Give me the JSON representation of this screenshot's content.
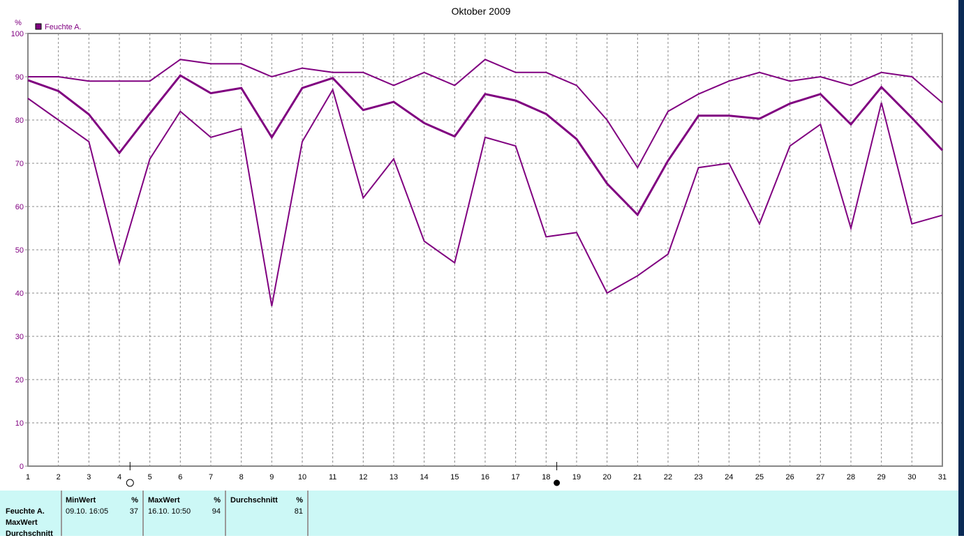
{
  "chart_data": {
    "type": "line",
    "title": "Oktober 2009",
    "ylabel": "%",
    "ylim": [
      0,
      100
    ],
    "yticks": [
      0,
      10,
      20,
      30,
      40,
      50,
      60,
      70,
      80,
      90,
      100
    ],
    "x": [
      1,
      2,
      3,
      4,
      5,
      6,
      7,
      8,
      9,
      10,
      11,
      12,
      13,
      14,
      15,
      16,
      17,
      18,
      19,
      20,
      21,
      22,
      23,
      24,
      25,
      26,
      27,
      28,
      29,
      30,
      31
    ],
    "grid": true,
    "legend": {
      "placement": "top-left",
      "entries": [
        "Feuchte A."
      ]
    },
    "color": "#800080",
    "markers": [
      {
        "x": 4.35,
        "style": "open-circle"
      },
      {
        "x": 18.35,
        "style": "filled-circle"
      }
    ],
    "series": [
      {
        "values": [
          90,
          90,
          89,
          89,
          89,
          94,
          93,
          93,
          90,
          92,
          91,
          91,
          88,
          91,
          88,
          94,
          91,
          91,
          88,
          80,
          69,
          82,
          86,
          89,
          91,
          89,
          90,
          88,
          91,
          90,
          84
        ]
      },
      {
        "values": [
          89.2,
          86.7,
          81.3,
          72.4,
          81.5,
          90.3,
          86.2,
          87.4,
          76,
          87.4,
          89.7,
          82.3,
          84.2,
          79.3,
          76.2,
          86,
          84.5,
          81.4,
          75.6,
          65.3,
          58.1,
          70.6,
          81,
          81,
          80.3,
          83.8,
          86,
          79,
          87.6,
          80.5,
          73
        ],
        "bold": true
      },
      {
        "values": [
          85,
          80,
          75,
          47,
          71,
          82,
          76,
          78,
          37,
          75,
          87,
          62,
          71,
          52,
          47,
          76,
          74,
          53,
          54,
          40,
          44,
          49,
          69,
          70,
          56,
          74,
          79,
          55,
          84,
          56,
          58
        ]
      }
    ]
  },
  "table": {
    "row_labels": [
      "Feuchte A.",
      "MaxWert",
      "Durchschnitt"
    ],
    "min": {
      "header": "MinWert",
      "unit": "%",
      "time": "09.10.  16:05",
      "value": "37"
    },
    "max": {
      "header": "MaxWert",
      "unit": "%",
      "time": "16.10.  10:50",
      "value": "94"
    },
    "avg": {
      "header": "Durchschnitt",
      "unit": "%",
      "value": "81"
    }
  }
}
